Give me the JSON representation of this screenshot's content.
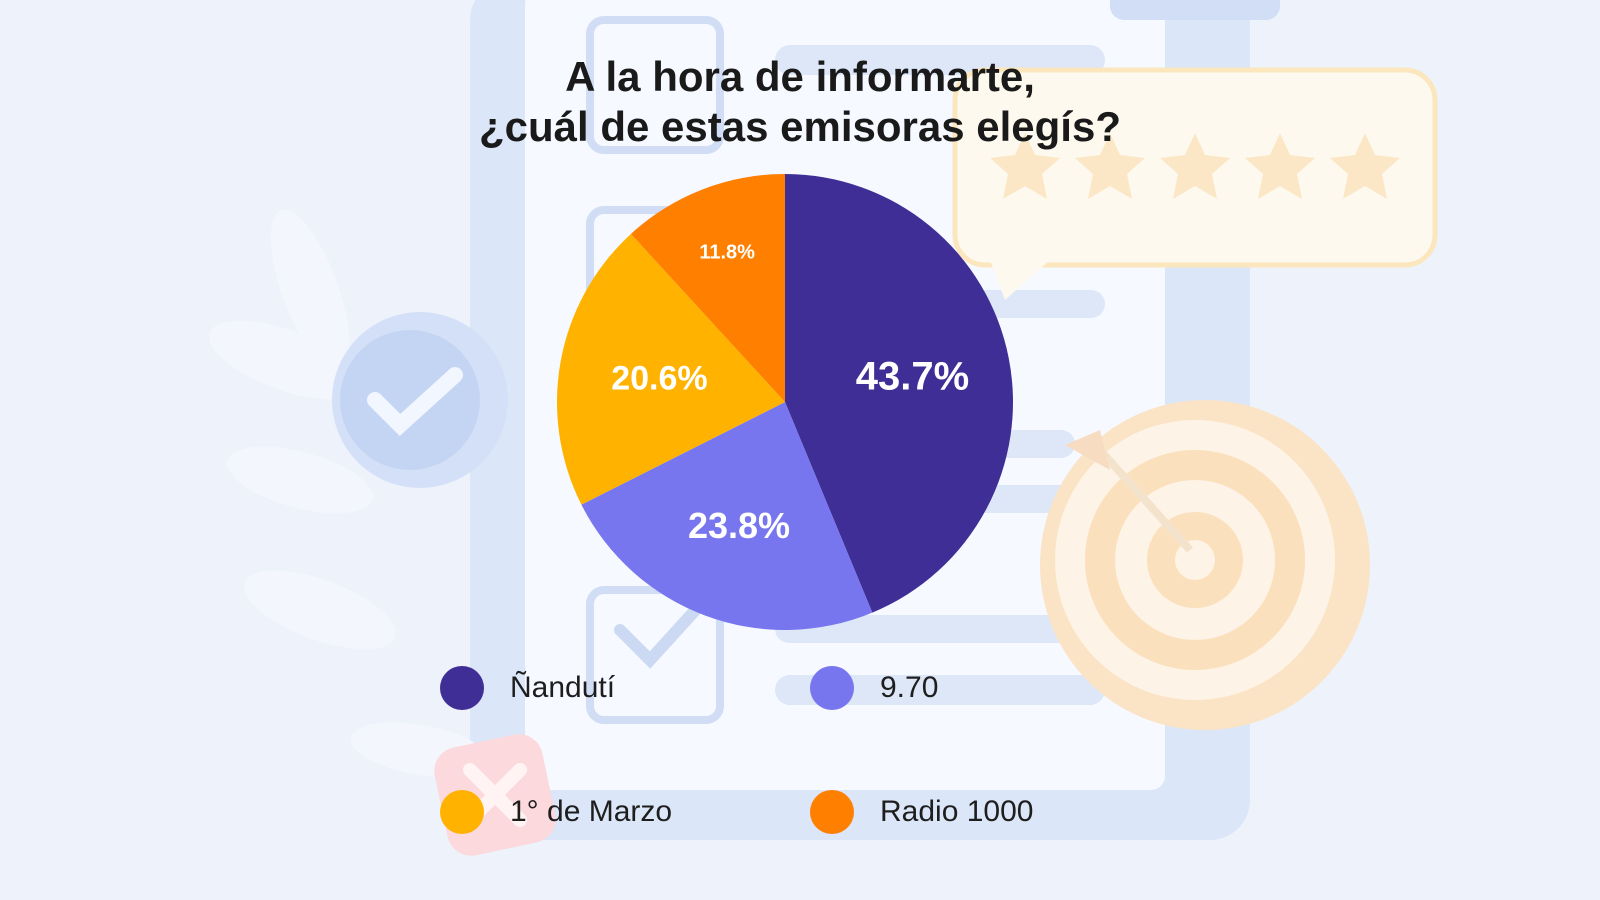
{
  "title": {
    "line1": "A la hora de informarte,",
    "line2": "¿cuál de estas emisoras elegís?"
  },
  "colors": {
    "nanduti": "#3f2e96",
    "970": "#7876ee",
    "marzo": "#ffb300",
    "radio1000": "#ff7f00",
    "background": "#eef3fb"
  },
  "icons": [
    "check-circle-icon",
    "star-icon",
    "target-icon",
    "close-icon",
    "leaf-icon",
    "clipboard-icon"
  ],
  "chart_data": {
    "type": "pie",
    "title": "A la hora de informarte, ¿cuál de estas emisoras elegís?",
    "slices": [
      {
        "label": "Ñandutí",
        "value": 43.7,
        "value_label": "43.7%",
        "color": "#3f2e96"
      },
      {
        "label": "9.70",
        "value": 23.8,
        "value_label": "23.8%",
        "color": "#7876ee"
      },
      {
        "label": "1° de Marzo",
        "value": 20.6,
        "value_label": "20.6%",
        "color": "#ffb300"
      },
      {
        "label": "Radio 1000",
        "value": 11.8,
        "value_label": "11.8%",
        "color": "#ff7f00"
      }
    ],
    "legend_position": "bottom"
  }
}
